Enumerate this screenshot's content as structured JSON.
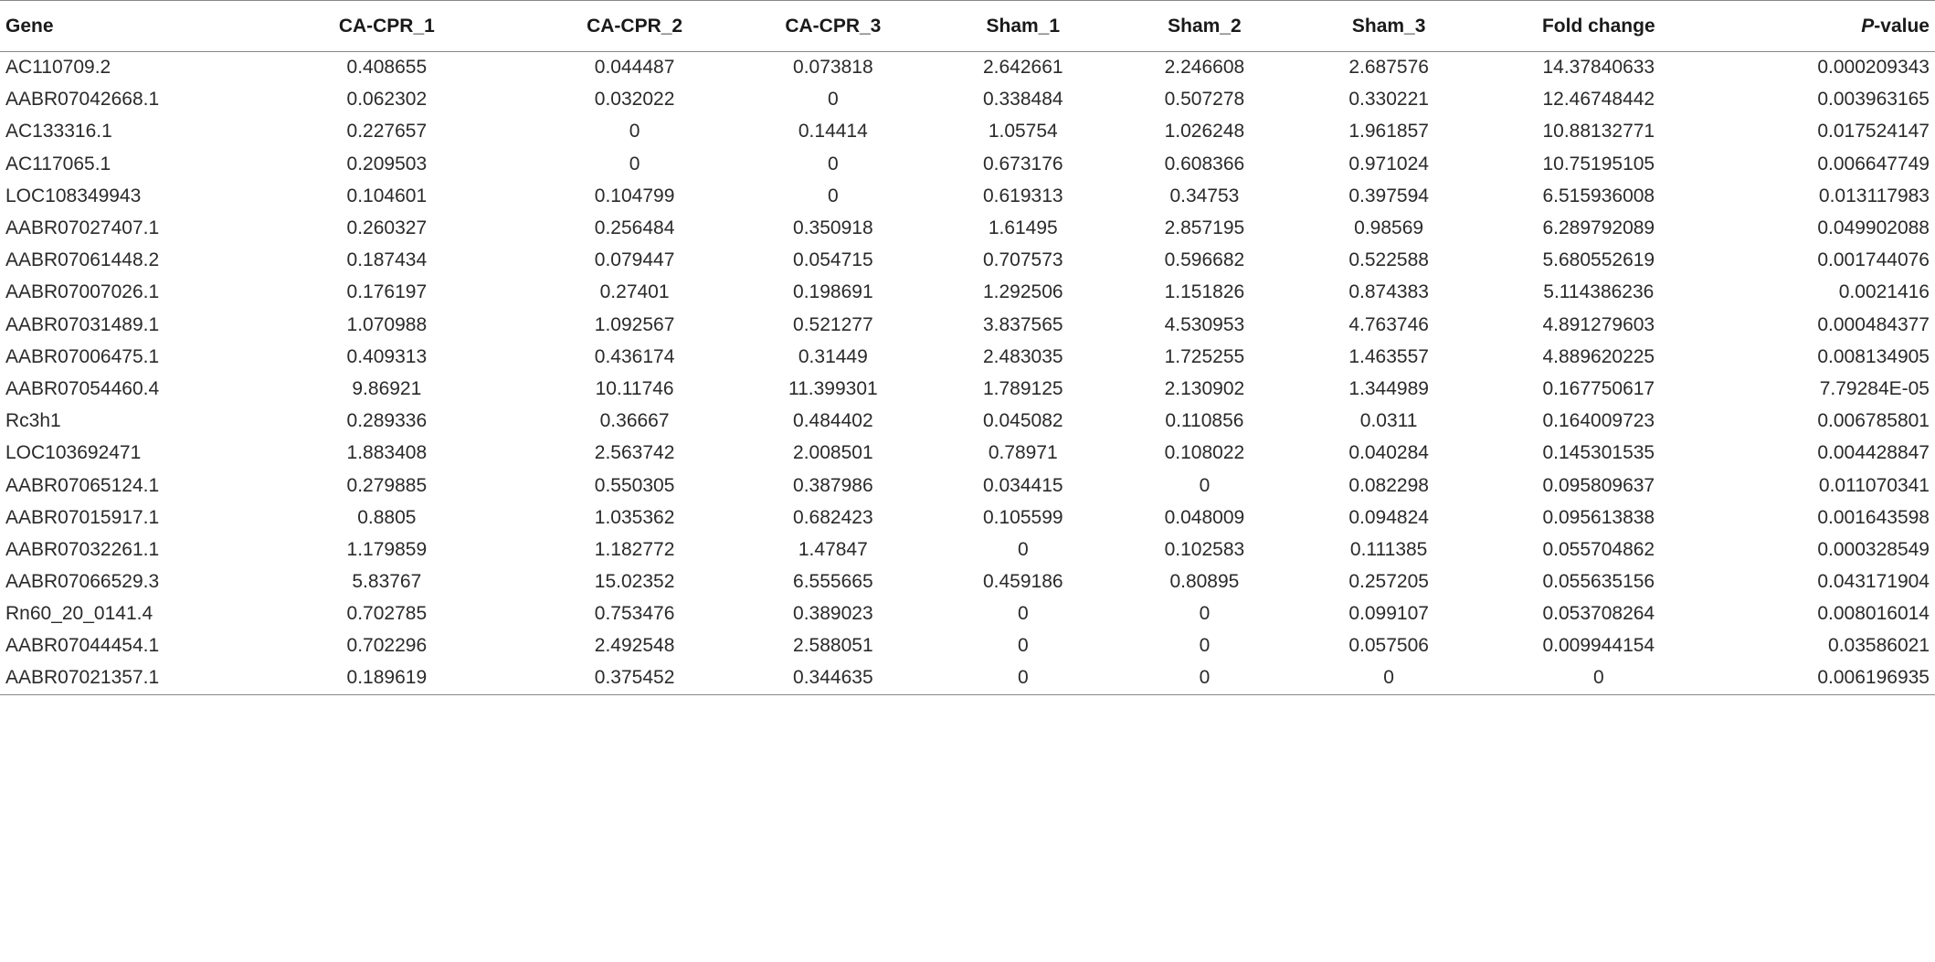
{
  "table": {
    "headers": {
      "gene": "Gene",
      "ca1": "CA-CPR_1",
      "ca2": "CA-CPR_2",
      "ca3": "CA-CPR_3",
      "s1": "Sham_1",
      "s2": "Sham_2",
      "s3": "Sham_3",
      "fc": "Fold change",
      "pv_italic": "P",
      "pv_rest": "-value"
    },
    "rows": [
      [
        "AC110709.2",
        "0.408655",
        "0.044487",
        "0.073818",
        "2.642661",
        "2.246608",
        "2.687576",
        "14.37840633",
        "0.000209343"
      ],
      [
        "AABR07042668.1",
        "0.062302",
        "0.032022",
        "0",
        "0.338484",
        "0.507278",
        "0.330221",
        "12.46748442",
        "0.003963165"
      ],
      [
        "AC133316.1",
        "0.227657",
        "0",
        "0.14414",
        "1.05754",
        "1.026248",
        "1.961857",
        "10.88132771",
        "0.017524147"
      ],
      [
        "AC117065.1",
        "0.209503",
        "0",
        "0",
        "0.673176",
        "0.608366",
        "0.971024",
        "10.75195105",
        "0.006647749"
      ],
      [
        "LOC108349943",
        "0.104601",
        "0.104799",
        "0",
        "0.619313",
        "0.34753",
        "0.397594",
        "6.515936008",
        "0.013117983"
      ],
      [
        "AABR07027407.1",
        "0.260327",
        "0.256484",
        "0.350918",
        "1.61495",
        "2.857195",
        "0.98569",
        "6.289792089",
        "0.049902088"
      ],
      [
        "AABR07061448.2",
        "0.187434",
        "0.079447",
        "0.054715",
        "0.707573",
        "0.596682",
        "0.522588",
        "5.680552619",
        "0.001744076"
      ],
      [
        "AABR07007026.1",
        "0.176197",
        "0.27401",
        "0.198691",
        "1.292506",
        "1.151826",
        "0.874383",
        "5.114386236",
        "0.0021416"
      ],
      [
        "AABR07031489.1",
        "1.070988",
        "1.092567",
        "0.521277",
        "3.837565",
        "4.530953",
        "4.763746",
        "4.891279603",
        "0.000484377"
      ],
      [
        "AABR07006475.1",
        "0.409313",
        "0.436174",
        "0.31449",
        "2.483035",
        "1.725255",
        "1.463557",
        "4.889620225",
        "0.008134905"
      ],
      [
        "AABR07054460.4",
        "9.86921",
        "10.11746",
        "11.399301",
        "1.789125",
        "2.130902",
        "1.344989",
        "0.167750617",
        "7.79284E-05"
      ],
      [
        "Rc3h1",
        "0.289336",
        "0.36667",
        "0.484402",
        "0.045082",
        "0.110856",
        "0.0311",
        "0.164009723",
        "0.006785801"
      ],
      [
        "LOC103692471",
        "1.883408",
        "2.563742",
        "2.008501",
        "0.78971",
        "0.108022",
        "0.040284",
        "0.145301535",
        "0.004428847"
      ],
      [
        "AABR07065124.1",
        "0.279885",
        "0.550305",
        "0.387986",
        "0.034415",
        "0",
        "0.082298",
        "0.095809637",
        "0.011070341"
      ],
      [
        "AABR07015917.1",
        "0.8805",
        "1.035362",
        "0.682423",
        "0.105599",
        "0.048009",
        "0.094824",
        "0.095613838",
        "0.001643598"
      ],
      [
        "AABR07032261.1",
        "1.179859",
        "1.182772",
        "1.47847",
        "0",
        "0.102583",
        "0.111385",
        "0.055704862",
        "0.000328549"
      ],
      [
        "AABR07066529.3",
        "5.83767",
        "15.02352",
        "6.555665",
        "0.459186",
        "0.80895",
        "0.257205",
        "0.055635156",
        "0.043171904"
      ],
      [
        "Rn60_20_0141.4",
        "0.702785",
        "0.753476",
        "0.389023",
        "0",
        "0",
        "0.099107",
        "0.053708264",
        "0.008016014"
      ],
      [
        "AABR07044454.1",
        "0.702296",
        "2.492548",
        "2.588051",
        "0",
        "0",
        "0.057506",
        "0.009944154",
        "0.03586021"
      ],
      [
        "AABR07021357.1",
        "0.189619",
        "0.375452",
        "0.344635",
        "0",
        "0",
        "0",
        "0",
        "0.006196935"
      ]
    ]
  }
}
